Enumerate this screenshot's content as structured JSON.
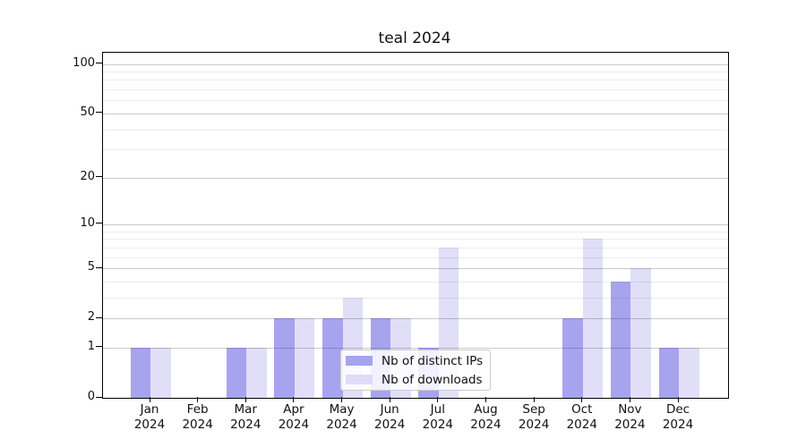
{
  "title": "teal 2024",
  "legend": {
    "items": [
      {
        "label": "Nb of distinct IPs",
        "swatch_color": "#a7a3ee"
      },
      {
        "label": "Nb of downloads",
        "swatch_color": "#dedcf9"
      }
    ]
  },
  "chart_data": {
    "type": "bar",
    "title": "teal 2024",
    "categories": [
      "Jan 2024",
      "Feb 2024",
      "Mar 2024",
      "Apr 2024",
      "May 2024",
      "Jun 2024",
      "Jul 2024",
      "Aug 2024",
      "Sep 2024",
      "Oct 2024",
      "Nov 2024",
      "Dec 2024"
    ],
    "x_tick_line1": [
      "Jan",
      "Feb",
      "Mar",
      "Apr",
      "May",
      "Jun",
      "Jul",
      "Aug",
      "Sep",
      "Oct",
      "Nov",
      "Dec"
    ],
    "x_tick_line2": "2024",
    "series": [
      {
        "name": "Nb of distinct IPs",
        "fill": "rgba(45,35,215,0.42)",
        "legend_color": "#a7a3ee",
        "values": [
          1,
          0,
          1,
          2,
          2,
          2,
          1,
          0,
          0,
          2,
          4,
          1
        ]
      },
      {
        "name": "Nb of downloads",
        "fill": "rgba(45,25,210,0.145)",
        "legend_color": "#dedcf9",
        "values": [
          1,
          0,
          1,
          2,
          3,
          2,
          7,
          0,
          0,
          8,
          5,
          1
        ]
      }
    ],
    "xlabel": "",
    "ylabel": "",
    "y_axis": {
      "scale": "log1p",
      "major_ticks": [
        0,
        1,
        2,
        5,
        10,
        20,
        50,
        100
      ],
      "minor_gridlines": [
        3,
        4,
        6,
        7,
        8,
        9,
        30,
        40,
        60,
        70,
        80,
        90
      ],
      "ylim": [
        0,
        117
      ]
    },
    "grid": true,
    "legend_position": "lower center",
    "colors": {
      "major_grid": "#c9c9c9",
      "minor_grid": "#ececec",
      "axis": "#000000"
    }
  }
}
